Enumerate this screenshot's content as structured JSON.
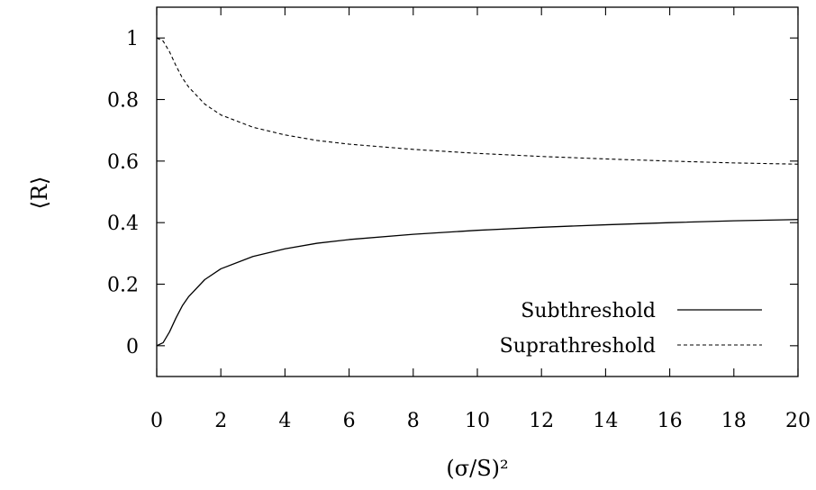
{
  "chart_data": {
    "type": "line",
    "title": "",
    "xlabel": "(σ/S)²",
    "ylabel": "⟨R⟩",
    "xlim": [
      0,
      20
    ],
    "ylim": [
      -0.1,
      1.1
    ],
    "x_ticks": [
      0,
      2,
      4,
      6,
      8,
      10,
      12,
      14,
      16,
      18,
      20
    ],
    "x_tick_labels": [
      "0",
      "2",
      "4",
      "6",
      "8",
      "10",
      "12",
      "14",
      "16",
      "18",
      "20"
    ],
    "y_ticks": [
      0,
      0.2,
      0.4,
      0.6,
      0.8,
      1
    ],
    "y_tick_labels": [
      "0",
      "0.2",
      "0.4",
      "0.6",
      "0.8",
      "1"
    ],
    "grid": false,
    "legend_position": "bottom-right",
    "series": [
      {
        "name": "Subthreshold",
        "style": "solid",
        "color": "#000000",
        "x": [
          0,
          0.2,
          0.4,
          0.6,
          0.8,
          1,
          1.5,
          2,
          3,
          4,
          5,
          6,
          8,
          10,
          12,
          14,
          16,
          18,
          20
        ],
        "y": [
          0,
          0.01,
          0.045,
          0.09,
          0.13,
          0.16,
          0.215,
          0.25,
          0.29,
          0.315,
          0.333,
          0.345,
          0.362,
          0.375,
          0.385,
          0.393,
          0.4,
          0.406,
          0.41
        ]
      },
      {
        "name": "Suprathreshold",
        "style": "dashed",
        "color": "#000000",
        "x": [
          0,
          0.2,
          0.4,
          0.6,
          0.8,
          1,
          1.5,
          2,
          3,
          4,
          5,
          6,
          8,
          10,
          12,
          14,
          16,
          18,
          20
        ],
        "y": [
          1,
          0.99,
          0.955,
          0.91,
          0.87,
          0.84,
          0.785,
          0.75,
          0.71,
          0.685,
          0.667,
          0.655,
          0.638,
          0.625,
          0.615,
          0.607,
          0.6,
          0.594,
          0.59
        ]
      }
    ]
  }
}
